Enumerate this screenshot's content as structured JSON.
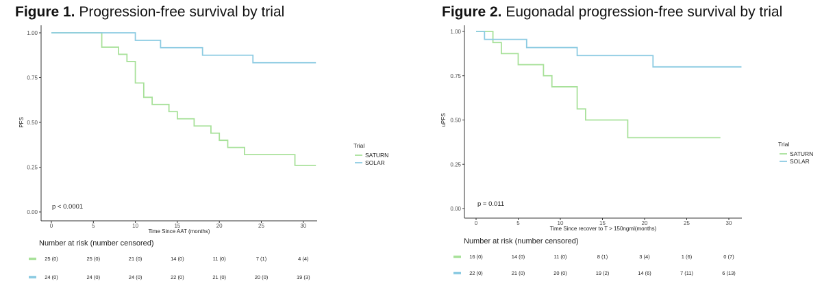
{
  "colors": {
    "saturn": "#a8e19a",
    "solar": "#8ccbe2",
    "axis": "#333333"
  },
  "figure1": {
    "number": "Figure 1.",
    "text": "Progression-free survival by trial"
  },
  "figure2": {
    "number": "Figure 2.",
    "text": "Eugonadal progression-free survival by trial"
  },
  "chart_data": [
    {
      "type": "line",
      "title": "Progression-free survival by trial",
      "xlabel": "Time Since AAT (months)",
      "ylabel": "PFS",
      "xlim": [
        -2.5,
        31.5
      ],
      "ylim": [
        0,
        1
      ],
      "x_ticks": [
        "0",
        "5",
        "10",
        "15",
        "20",
        "25",
        "30"
      ],
      "y_ticks": [
        "0.00",
        "0.25",
        "0.50",
        "0.75",
        "1.00"
      ],
      "step": true,
      "legend_title": "Trial",
      "legend_position": "right",
      "annotation": "p < 0.0001",
      "series": [
        {
          "name": "SATURN",
          "color": "#a8e19a",
          "x": [
            0,
            6,
            8,
            9,
            10,
            11,
            12,
            14,
            15,
            17,
            19,
            20,
            21,
            23,
            29,
            31.5
          ],
          "y": [
            1.0,
            0.92,
            0.88,
            0.84,
            0.72,
            0.64,
            0.6,
            0.56,
            0.52,
            0.48,
            0.44,
            0.4,
            0.36,
            0.32,
            0.26,
            0.26
          ]
        },
        {
          "name": "SOLAR",
          "color": "#8ccbe2",
          "x": [
            0,
            10,
            13,
            18,
            24,
            31.5
          ],
          "y": [
            1.0,
            0.958,
            0.917,
            0.875,
            0.833,
            0.833
          ]
        }
      ],
      "risk_table": {
        "title": "Number at risk (number censored)",
        "rows": [
          {
            "series": "SATURN",
            "values": [
              "25 (0)",
              "25 (0)",
              "21 (0)",
              "14 (0)",
              "11 (0)",
              "7 (1)",
              "4 (4)"
            ]
          },
          {
            "series": "SOLAR",
            "values": [
              "24 (0)",
              "24 (0)",
              "24 (0)",
              "22 (0)",
              "21 (0)",
              "20 (0)",
              "19 (3)"
            ]
          }
        ]
      }
    },
    {
      "type": "line",
      "title": "Eugonadal progression-free survival by trial",
      "xlabel": "Time Since recover to T > 150ngml(months)",
      "ylabel": "uPFS",
      "xlim": [
        -1.5,
        31.5
      ],
      "ylim": [
        0,
        1
      ],
      "x_ticks": [
        "0",
        "5",
        "10",
        "15",
        "20",
        "25",
        "30"
      ],
      "y_ticks": [
        "0.00",
        "0.25",
        "0.50",
        "0.75",
        "1.00"
      ],
      "step": true,
      "legend_title": "Trial",
      "legend_position": "right",
      "annotation": "p = 0.011",
      "series": [
        {
          "name": "SATURN",
          "color": "#a8e19a",
          "x": [
            0,
            2,
            3,
            5,
            8,
            9,
            12,
            13,
            18,
            29
          ],
          "y": [
            1.0,
            0.9375,
            0.875,
            0.8125,
            0.75,
            0.6875,
            0.5625,
            0.5,
            0.4,
            0.4
          ]
        },
        {
          "name": "SOLAR",
          "color": "#8ccbe2",
          "x": [
            0,
            1,
            6,
            12,
            21,
            31.5
          ],
          "y": [
            1.0,
            0.955,
            0.909,
            0.864,
            0.8,
            0.8
          ]
        }
      ],
      "risk_table": {
        "title": "Number at risk (number censored)",
        "rows": [
          {
            "series": "SATURN",
            "values": [
              "16 (0)",
              "14 (0)",
              "11 (0)",
              "8 (1)",
              "3 (4)",
              "1 (6)",
              "0 (7)"
            ]
          },
          {
            "series": "SOLAR",
            "values": [
              "22 (0)",
              "21 (0)",
              "20 (0)",
              "19 (2)",
              "14 (6)",
              "7 (11)",
              "6 (13)"
            ]
          }
        ]
      }
    }
  ]
}
